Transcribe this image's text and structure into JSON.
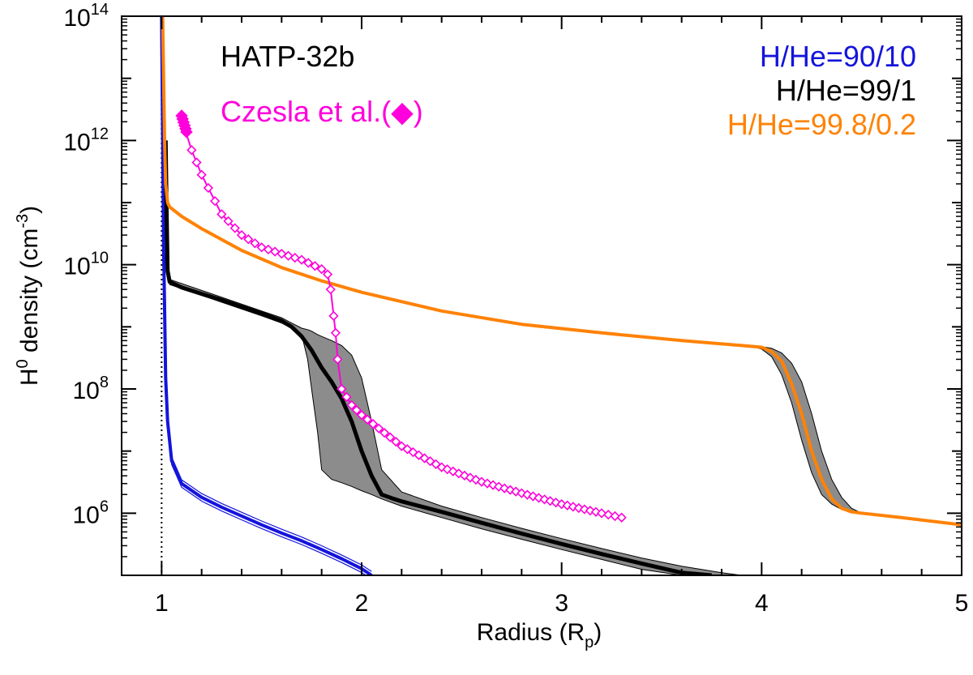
{
  "chart_data": {
    "type": "line",
    "xlabel": "Radius (R",
    "xlabel_sub": "p",
    "xlabel_end": ")",
    "ylabel": "H",
    "ylabel_sup": "0",
    "ylabel_rest": " density (cm",
    "ylabel_unit_sup": "-3",
    "ylabel_end": ")",
    "xlim": [
      0.8,
      5.0
    ],
    "ylim": [
      100000,
      100000000000000
    ],
    "yscale": "log",
    "x_ticks": [
      {
        "value": 1,
        "label": "1"
      },
      {
        "value": 2,
        "label": "2"
      },
      {
        "value": 3,
        "label": "3"
      },
      {
        "value": 4,
        "label": "4"
      },
      {
        "value": 5,
        "label": "5"
      }
    ],
    "y_ticks": [
      {
        "exp": 6,
        "base": "10",
        "sup": "6"
      },
      {
        "exp": 8,
        "base": "10",
        "sup": "8"
      },
      {
        "exp": 10,
        "base": "10",
        "sup": "10"
      },
      {
        "exp": 12,
        "base": "10",
        "sup": "12"
      },
      {
        "exp": 14,
        "base": "10",
        "sup": "14"
      }
    ],
    "reference_line": {
      "x": 1.0,
      "style": "dotted"
    },
    "annotation": {
      "text": "HATP-32b"
    },
    "legend": [
      {
        "label": "H/He=90/10",
        "color": "#1414dc"
      },
      {
        "label": "H/He=99/1",
        "color": "#000000"
      },
      {
        "label": "H/He=99.8/0.2",
        "color": "#ff8205"
      }
    ],
    "czesla_legend": {
      "text": "Czesla et al.(",
      "marker": "◆",
      "close": ")",
      "color": "#ff00dc"
    },
    "series": [
      {
        "name": "H/He=90/10",
        "color": "#1414dc",
        "band": true,
        "x": [
          1.0,
          1.01,
          1.02,
          1.03,
          1.05,
          1.1,
          1.2,
          1.3,
          1.4,
          1.5,
          1.6,
          1.7,
          1.8,
          1.9,
          2.0,
          2.05
        ],
        "y": [
          100000000000000,
          20000000000,
          150000000,
          30000000,
          7000000,
          3000000,
          1800000,
          1250000,
          900000,
          650000,
          480000,
          360000,
          260000,
          185000,
          128000,
          100000
        ],
        "band_factor": 1.15
      },
      {
        "name": "H/He=99/1",
        "color": "#000000",
        "x": [
          1.02,
          1.025,
          1.03,
          1.04,
          1.1,
          1.2,
          1.3,
          1.4,
          1.5,
          1.6,
          1.65,
          1.7,
          1.75,
          1.8,
          1.85,
          1.9,
          1.95,
          2.0,
          2.05,
          2.1,
          2.15,
          2.2,
          2.4,
          2.6,
          2.8,
          3.0,
          3.2,
          3.4,
          3.6,
          3.75
        ],
        "y": [
          1000000000000,
          70000000000,
          8000000000,
          5300000000,
          4300000000,
          3400000000,
          2700000000,
          2100000000,
          1650000000,
          1250000000,
          1000000000,
          700000000,
          420000000,
          220000000,
          130000000,
          70000000,
          30000000,
          10000000,
          4000000,
          2000000,
          1750000,
          1550000,
          1050000,
          700000,
          470000,
          320000,
          220000,
          155000,
          110000,
          100000
        ],
        "band_x": [
          1.04,
          1.5,
          1.6,
          1.65,
          1.7,
          1.73,
          1.75,
          1.78,
          1.8,
          1.85,
          1.9,
          1.95,
          2.0,
          2.05,
          2.1,
          2.2,
          2.4,
          2.6,
          2.8,
          3.0,
          3.2,
          3.4,
          3.6,
          3.8,
          3.9
        ],
        "band_upper": [
          5800000000,
          1800000000,
          1400000000,
          1150000000,
          950000000,
          900000000,
          850000000,
          750000000,
          700000000,
          600000000,
          500000000,
          350000000,
          150000000,
          30000000,
          5000000,
          2200000,
          1300000,
          850000,
          570000,
          390000,
          270000,
          190000,
          140000,
          110000,
          100000
        ],
        "band_lower": [
          4800000000,
          1500000000,
          1150000000,
          950000000,
          750000000,
          300000000,
          100000000,
          20000000,
          5000000,
          3500000,
          3100000,
          2700000,
          2300000,
          2000000,
          1700000,
          1300000,
          850000,
          560000,
          380000,
          260000,
          180000,
          125000,
          100000,
          100000,
          100000
        ]
      },
      {
        "name": "H/He=99.8/0.2",
        "color": "#ff8205",
        "x": [
          1.005,
          1.01,
          1.015,
          1.02,
          1.03,
          1.04,
          1.1,
          1.2,
          1.4,
          1.6,
          1.8,
          2.0,
          2.4,
          2.8,
          3.2,
          3.6,
          3.9,
          4.0,
          4.05,
          4.1,
          4.15,
          4.2,
          4.25,
          4.3,
          4.35,
          4.4,
          4.45,
          4.5,
          4.7,
          5.0
        ],
        "y": [
          100000000000000,
          10000000000000,
          1000000000000,
          200000000000,
          100000000000,
          85000000000,
          60000000000,
          38000000000,
          17000000000,
          9000000000,
          5500000000,
          3600000000,
          1800000000,
          1100000000,
          800000000,
          600000000,
          500000000,
          470000000,
          400000000,
          280000000,
          120000000,
          40000000,
          10000000,
          3500000,
          1700000,
          1200000,
          1050000,
          1000000,
          850000,
          650000
        ],
        "band_x": [
          3.95,
          4.0,
          4.05,
          4.1,
          4.15,
          4.2,
          4.25,
          4.3,
          4.35,
          4.4,
          4.45,
          4.5
        ],
        "band_upper": [
          490000000,
          480000000,
          450000000,
          380000000,
          260000000,
          130000000,
          40000000,
          10000000,
          3500000,
          1800000,
          1200000,
          1000000
        ],
        "band_lower": [
          480000000,
          440000000,
          330000000,
          170000000,
          60000000,
          15000000,
          4500000,
          2000000,
          1400000,
          1150000,
          1050000,
          1000000
        ]
      },
      {
        "name": "Czesla et al.",
        "color": "#ff00dc",
        "marker": "diamond",
        "x": [
          1.1,
          1.12,
          1.15,
          1.2,
          1.3,
          1.4,
          1.5,
          1.6,
          1.7,
          1.8,
          1.83,
          1.845,
          1.86,
          1.87,
          1.88,
          1.9,
          1.95,
          2.0,
          2.2,
          2.4,
          2.6,
          2.8,
          3.0,
          3.2,
          3.3
        ],
        "y": [
          2500000000000,
          1400000000000,
          700000000000,
          280000000000,
          65000000000,
          30000000000,
          19000000000,
          15000000000,
          12000000000,
          8500000000,
          7000000000,
          4000000000,
          1500000000,
          800000000,
          300000000,
          100000000,
          55000000,
          38000000,
          12000000,
          5500000,
          3200000,
          2100000,
          1400000,
          1000000,
          850000
        ]
      }
    ]
  }
}
